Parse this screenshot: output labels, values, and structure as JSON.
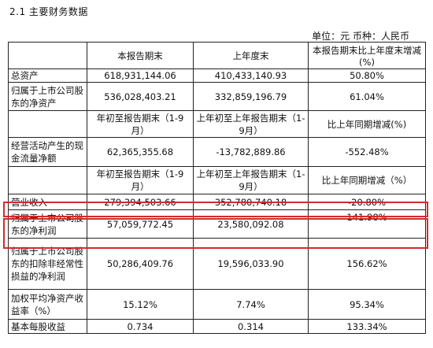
{
  "section_title": "2.1 主要财务数据",
  "unit_line": "单位：元   币种：人民币",
  "header1": [
    "",
    "本报告期末",
    "上年度末",
    "本报告期末比上年度末增减(%)"
  ],
  "rows_a": [
    {
      "label": "总资产",
      "v1": "618,931,144.06",
      "v2": "410,433,140.93",
      "v3": "50.80%"
    },
    {
      "label": "归属于上市公司股东的净资产",
      "v1": "536,028,403.21",
      "v2": "332,859,196.79",
      "v3": "61.04%"
    }
  ],
  "header2": [
    "",
    "年初至报告期末（1-9月）",
    "上年初至上年报告期末（1-9月）",
    "比上年同期增减(%)"
  ],
  "rows_b": [
    {
      "label": "经营活动产生的现金流量净额",
      "v1": "62,365,355.68",
      "v2": "-13,782,889.86",
      "v3": "-552.48%"
    }
  ],
  "header3": [
    "",
    "年初至报告期末（1-9月）",
    "上年初至上年报告期末（1-9月）",
    "比上年同期增减（%）"
  ],
  "rows_c": [
    {
      "label": "营业收入",
      "v1": "279,394,503.66",
      "v2": "352,780,740.18",
      "v3": "-20.80%"
    },
    {
      "label": "归属于上市公司股东的净利润",
      "v1": "57,059,772.45",
      "v2": "23,580,092.08",
      "v3": "141.98%"
    },
    {
      "label": "归属于上市公司股东的扣除非经常性损益的净利润",
      "v1": "50,286,409.76",
      "v2": "19,596,033.90",
      "v3": "156.62%"
    },
    {
      "label": "加权平均净资产收益率（%）",
      "v1": "15.12%",
      "v2": "7.74%",
      "v3": "95.34%"
    },
    {
      "label": "基本每股收益",
      "v1": "0.734",
      "v2": "0.314",
      "v3": "133.34%"
    }
  ],
  "highlight_color": "#d42a2a"
}
